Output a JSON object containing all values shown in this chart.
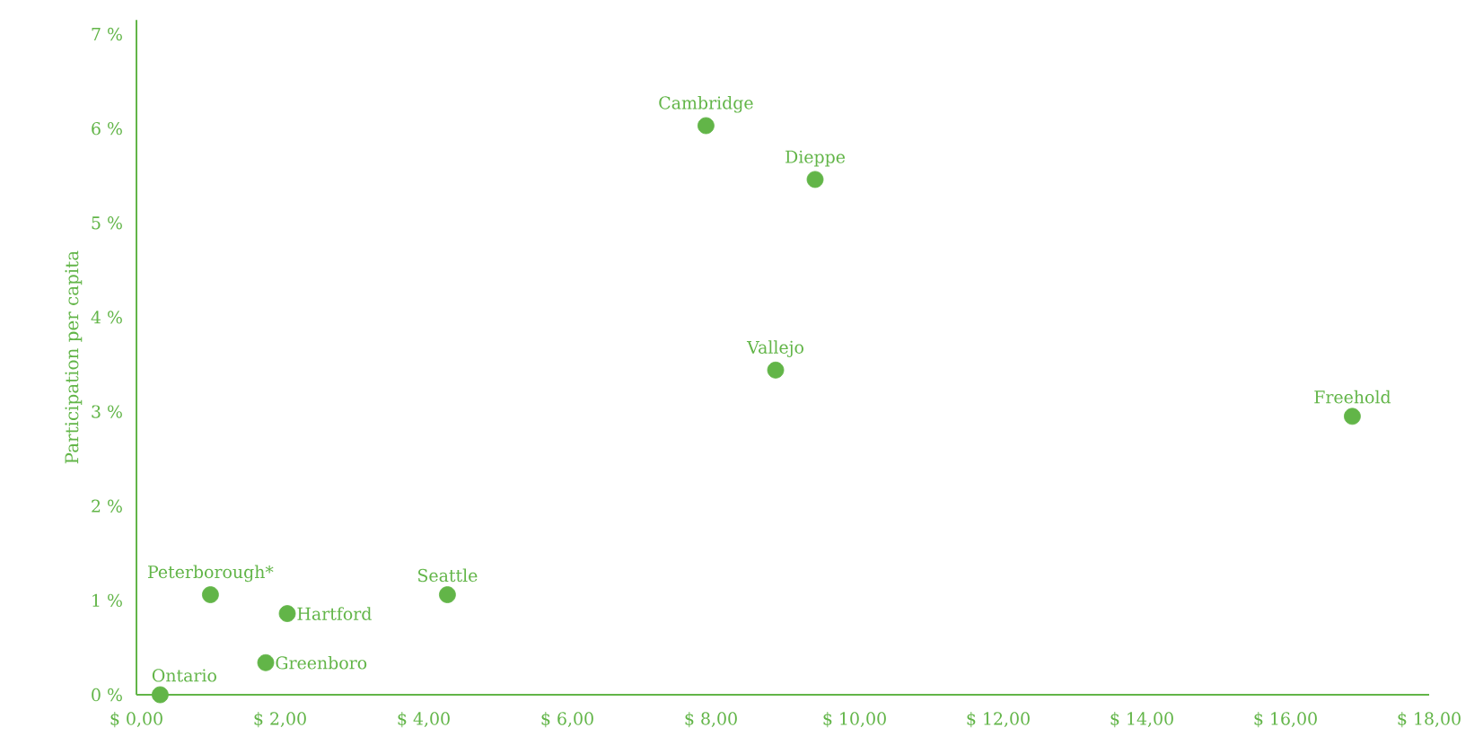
{
  "chart_data": {
    "type": "scatter",
    "ylabel": "Participation per capita",
    "x": [
      0.33,
      1.03,
      2.1,
      1.8,
      4.33,
      7.93,
      9.45,
      8.9,
      16.93
    ],
    "values": [
      0,
      1.06,
      0.86,
      0.34,
      1.06,
      6.03,
      5.46,
      3.44,
      2.95
    ],
    "color": "#62b548",
    "marker": "circle",
    "xlim": [
      0,
      18
    ],
    "ylim": [
      0,
      7.15
    ],
    "xticks": [
      {
        "value": 0,
        "label": "$ 0,00"
      },
      {
        "value": 2,
        "label": "$ 2,00"
      },
      {
        "value": 4,
        "label": "$ 4,00"
      },
      {
        "value": 6,
        "label": "$ 6,00"
      },
      {
        "value": 8,
        "label": "$ 8,00"
      },
      {
        "value": 10,
        "label": "$ 10,00"
      },
      {
        "value": 12,
        "label": "$ 12,00"
      },
      {
        "value": 14,
        "label": "$ 14,00"
      },
      {
        "value": 16,
        "label": "$ 16,00"
      },
      {
        "value": 18,
        "label": "$ 18,00"
      }
    ],
    "yticks": [
      {
        "value": 0,
        "label": "0 %"
      },
      {
        "value": 1,
        "label": "1 %"
      },
      {
        "value": 2,
        "label": "2 %"
      },
      {
        "value": 3,
        "label": "3 %"
      },
      {
        "value": 4,
        "label": "4 %"
      },
      {
        "value": 5,
        "label": "5 %"
      },
      {
        "value": 6,
        "label": "6 %"
      },
      {
        "value": 7,
        "label": "7 %"
      }
    ],
    "annotations": [
      {
        "text": "Ontario",
        "x": 0.33,
        "y": 0
      },
      {
        "text": "Peterborough*",
        "x": 1.03,
        "y": 1.06
      },
      {
        "text": "Hartford",
        "x": 2.1,
        "y": 0.86
      },
      {
        "text": "Greenboro",
        "x": 1.8,
        "y": 0.34
      },
      {
        "text": "Seattle",
        "x": 4.33,
        "y": 1.06
      },
      {
        "text": "Cambridge",
        "x": 7.93,
        "y": 6.03
      },
      {
        "text": "Dieppe",
        "x": 9.45,
        "y": 5.46
      },
      {
        "text": "Vallejo",
        "x": 8.9,
        "y": 3.44
      },
      {
        "text": "Freehold",
        "x": 16.93,
        "y": 2.95
      }
    ]
  }
}
